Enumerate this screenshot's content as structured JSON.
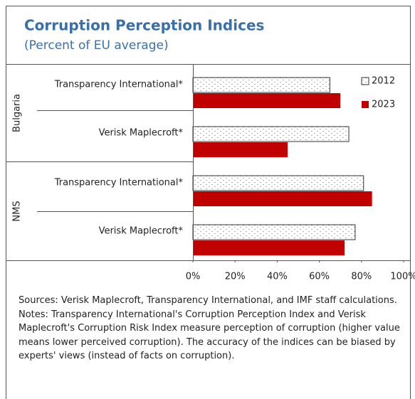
{
  "chart_data": {
    "type": "bar",
    "orientation": "horizontal",
    "title": "Corruption Perception Indices",
    "subtitle": "(Percent of EU average)",
    "groups": [
      "Bulgaria",
      "NMS"
    ],
    "categories": [
      "Transparency International*",
      "Verisk Maplecroft*",
      "Transparency International*",
      "Verisk Maplecroft*"
    ],
    "series": [
      {
        "name": "2012",
        "color": "#ffffff",
        "values": [
          65,
          74,
          81,
          77
        ]
      },
      {
        "name": "2023",
        "color": "#c00000",
        "values": [
          70,
          45,
          85,
          72
        ]
      }
    ],
    "xlim": [
      0,
      100
    ],
    "xticks": [
      {
        "value": 0,
        "label": "0%"
      },
      {
        "value": 20,
        "label": "20%"
      },
      {
        "value": 40,
        "label": "40%"
      },
      {
        "value": 60,
        "label": "60%"
      },
      {
        "value": 80,
        "label": "80%"
      },
      {
        "value": 100,
        "label": "100%"
      }
    ],
    "title_color": "#3b6fa8",
    "legend": "top-right",
    "notes": [
      "Sources: Verisk Maplecroft, Transparency International, and IMF staff calculations.",
      "Notes: Transparency International's  Corruption Perception Index and Verisk Maplecroft's Corruption Risk Index measure perception of corruption (higher value means lower perceived corruption). The accuracy of the indices can be biased by experts' views (instead of facts on corruption)."
    ]
  }
}
